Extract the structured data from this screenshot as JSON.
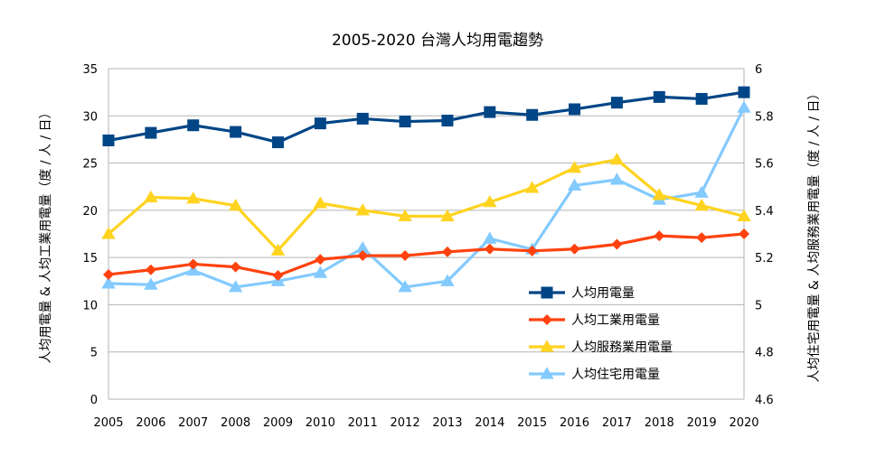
{
  "chart_data": {
    "type": "line",
    "title": "2005-2020 台灣人均用電趨勢",
    "ylabel_left": "人均用電量 & 人均工業用電量（度 / 人 / 日）",
    "ylabel_right": "人均住宅用電量 & 人均服務業用電量（度 / 人 / 日）",
    "x": [
      "2005",
      "2006",
      "2007",
      "2008",
      "2009",
      "2010",
      "2011",
      "2012",
      "2013",
      "2014",
      "2015",
      "2016",
      "2017",
      "2018",
      "2019",
      "2020"
    ],
    "ylim_left": [
      0,
      35
    ],
    "yticks_left": [
      "0",
      "5",
      "10",
      "15",
      "20",
      "25",
      "30",
      "35"
    ],
    "ylim_right": [
      4.6,
      6
    ],
    "yticks_right": [
      "4.6",
      "4.8",
      "5",
      "5.2",
      "5.4",
      "5.6",
      "5.8",
      "6"
    ],
    "grid": "horizontal",
    "legend_position": "right-center",
    "series": [
      {
        "name": "人均用電量",
        "axis": "left",
        "color": "#004586",
        "marker": "square",
        "values": [
          27.4,
          28.2,
          29.0,
          28.3,
          27.2,
          29.2,
          29.7,
          29.4,
          29.5,
          30.4,
          30.1,
          30.7,
          31.4,
          32.0,
          31.8,
          32.5
        ]
      },
      {
        "name": "人均工業用電量",
        "axis": "left",
        "color": "#ff420e",
        "marker": "diamond",
        "values": [
          13.2,
          13.7,
          14.3,
          14.0,
          13.1,
          14.8,
          15.2,
          15.2,
          15.6,
          15.9,
          15.7,
          15.9,
          16.4,
          17.3,
          17.1,
          17.5
        ]
      },
      {
        "name": "人均服務業用電量",
        "axis": "right",
        "color": "#ffd320",
        "marker": "triangle",
        "values": [
          5.3,
          5.455,
          5.45,
          5.42,
          5.23,
          5.43,
          5.4,
          5.375,
          5.375,
          5.435,
          5.495,
          5.58,
          5.615,
          5.465,
          5.42,
          5.375
        ]
      },
      {
        "name": "人均住宅用電量",
        "axis": "right",
        "color": "#83caff",
        "marker": "triangle",
        "values": [
          5.09,
          5.085,
          5.145,
          5.075,
          5.1,
          5.135,
          5.24,
          5.075,
          5.1,
          5.28,
          5.235,
          5.505,
          5.53,
          5.445,
          5.475,
          5.835
        ]
      }
    ]
  }
}
